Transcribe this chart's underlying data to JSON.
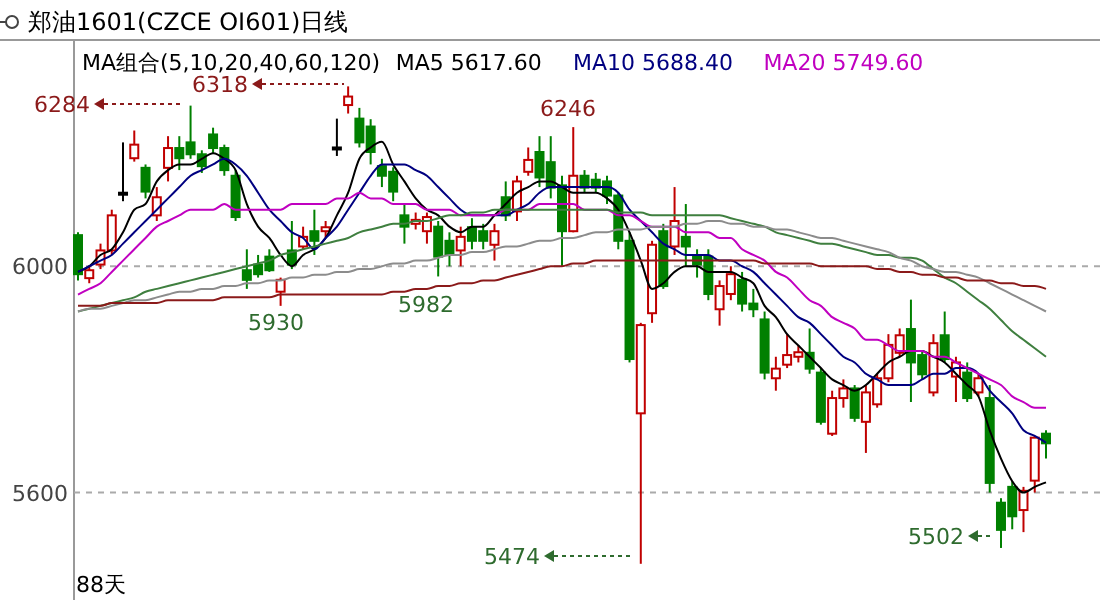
{
  "chart_data": {
    "type": "candlestick",
    "title": "郑油1601(CZCE OI601)日线",
    "subtitle": "MA组合(5,10,20,40,60,120)",
    "categories": [
      null,
      null,
      null,
      null,
      null,
      null,
      null,
      null,
      null,
      null,
      null,
      null,
      null,
      null,
      null,
      null,
      null,
      null,
      null,
      null,
      null,
      null,
      null,
      null,
      null,
      null,
      null,
      null,
      null,
      null,
      null,
      null,
      null,
      null,
      null,
      null,
      null,
      null,
      null,
      null,
      null,
      null,
      null,
      null,
      null,
      null,
      null,
      null,
      null,
      null,
      null,
      null,
      null,
      null,
      null,
      null,
      null,
      null,
      null,
      null,
      null,
      null,
      null,
      null,
      null,
      null,
      null,
      null,
      null,
      null,
      null,
      null,
      null,
      null,
      null,
      null,
      null,
      null,
      null,
      null,
      null,
      null,
      null,
      null,
      null,
      null,
      null
    ],
    "ohlc": [
      [
        6055,
        6060,
        5975,
        5986
      ],
      [
        5979,
        6000,
        5970,
        5993
      ],
      [
        6003,
        6040,
        5995,
        6028
      ],
      [
        6028,
        6100,
        6020,
        6090
      ],
      [
        6130,
        6219,
        6115,
        6130
      ],
      [
        6191,
        6240,
        6185,
        6215
      ],
      [
        6174,
        6180,
        6120,
        6132
      ],
      [
        6090,
        6140,
        6080,
        6122
      ],
      [
        6174,
        6230,
        6150,
        6209
      ],
      [
        6209,
        6230,
        6170,
        6191
      ],
      [
        6219,
        6284,
        6190,
        6198
      ],
      [
        6198,
        6205,
        6165,
        6177
      ],
      [
        6233,
        6245,
        6200,
        6209
      ],
      [
        6209,
        6215,
        6160,
        6170
      ],
      [
        6160,
        6170,
        6080,
        6087
      ],
      [
        5993,
        6030,
        5960,
        5976
      ],
      [
        6003,
        6020,
        5980,
        5986
      ],
      [
        6017,
        6030,
        5990,
        5993
      ],
      [
        5955,
        5980,
        5930,
        5976
      ],
      [
        6028,
        6080,
        5995,
        6003
      ],
      [
        6035,
        6070,
        6030,
        6052
      ],
      [
        6062,
        6100,
        6020,
        6045
      ],
      [
        6062,
        6080,
        6050,
        6069
      ],
      [
        6210,
        6261,
        6195,
        6210
      ],
      [
        6285,
        6318,
        6270,
        6300
      ],
      [
        6261,
        6280,
        6210,
        6219
      ],
      [
        6247,
        6260,
        6180,
        6202
      ],
      [
        6177,
        6190,
        6140,
        6160
      ],
      [
        6167,
        6175,
        6115,
        6132
      ],
      [
        6090,
        6110,
        6040,
        6070
      ],
      [
        6075,
        6095,
        6065,
        6082
      ],
      [
        6062,
        6095,
        6040,
        6087
      ],
      [
        6070,
        6080,
        5982,
        6017
      ],
      [
        6045,
        6060,
        6000,
        6021
      ],
      [
        6028,
        6070,
        6000,
        6052
      ],
      [
        6069,
        6085,
        6030,
        6045
      ],
      [
        6062,
        6075,
        6030,
        6045
      ],
      [
        6038,
        6075,
        6010,
        6062
      ],
      [
        6122,
        6150,
        6080,
        6090
      ],
      [
        6097,
        6160,
        6080,
        6150
      ],
      [
        6167,
        6210,
        6160,
        6188
      ],
      [
        6202,
        6230,
        6140,
        6157
      ],
      [
        6184,
        6230,
        6120,
        6139
      ],
      [
        6143,
        6160,
        6000,
        6062
      ],
      [
        6062,
        6246,
        6060,
        6160
      ],
      [
        6160,
        6170,
        6130,
        6139
      ],
      [
        6153,
        6165,
        6130,
        6139
      ],
      [
        6150,
        6160,
        6110,
        6125
      ],
      [
        6125,
        6130,
        6030,
        6045
      ],
      [
        6045,
        6060,
        5830,
        5836
      ],
      [
        5740,
        5900,
        5474,
        5896
      ],
      [
        5917,
        6045,
        5900,
        6038
      ],
      [
        6062,
        6075,
        5960,
        5965
      ],
      [
        6035,
        6140,
        6020,
        6080
      ],
      [
        6052,
        6110,
        6000,
        6035
      ],
      [
        6017,
        6030,
        5980,
        6003
      ],
      [
        6017,
        6030,
        5940,
        5951
      ],
      [
        5924,
        5975,
        5895,
        5965
      ],
      [
        5951,
        6000,
        5940,
        5986
      ],
      [
        5976,
        5990,
        5920,
        5934
      ],
      [
        5934,
        5960,
        5910,
        5924
      ],
      [
        5906,
        5920,
        5800,
        5812
      ],
      [
        5802,
        5840,
        5780,
        5819
      ],
      [
        5826,
        5880,
        5820,
        5843
      ],
      [
        5840,
        5860,
        5830,
        5848
      ],
      [
        5847,
        5890,
        5810,
        5819
      ],
      [
        5812,
        5820,
        5720,
        5725
      ],
      [
        5704,
        5780,
        5700,
        5767
      ],
      [
        5767,
        5800,
        5750,
        5784
      ],
      [
        5784,
        5790,
        5725,
        5732
      ],
      [
        5725,
        5790,
        5670,
        5777
      ],
      [
        5756,
        5810,
        5750,
        5802
      ],
      [
        5802,
        5880,
        5795,
        5861
      ],
      [
        5847,
        5890,
        5840,
        5878
      ],
      [
        5889,
        5941,
        5760,
        5830
      ],
      [
        5843,
        5850,
        5800,
        5809
      ],
      [
        5777,
        5880,
        5770,
        5864
      ],
      [
        5878,
        5920,
        5830,
        5836
      ],
      [
        5805,
        5840,
        5760,
        5830
      ],
      [
        5812,
        5830,
        5760,
        5767
      ],
      [
        5777,
        5810,
        5770,
        5802
      ],
      [
        5767,
        5790,
        5600,
        5617
      ],
      [
        5582,
        5590,
        5502,
        5534
      ],
      [
        5610,
        5620,
        5535,
        5558
      ],
      [
        5569,
        5610,
        5530,
        5603
      ],
      [
        5621,
        5700,
        5600,
        5697
      ],
      [
        5704,
        5710,
        5660,
        5687
      ]
    ],
    "series": [
      {
        "type": "line",
        "name": "MA5 5617.60",
        "color": "#000000",
        "values": [
          5990,
          6000,
          6020,
          6030,
          6060,
          6100,
          6110,
          6150,
          6170,
          6180,
          6180,
          6190,
          6200,
          6190,
          6170,
          6110,
          6070,
          6050,
          6020,
          6000,
          6020,
          6030,
          6050,
          6090,
          6130,
          6190,
          6210,
          6220,
          6180,
          6150,
          6120,
          6100,
          6090,
          6070,
          6060,
          6070,
          6070,
          6090,
          6110,
          6130,
          6140,
          6150,
          6150,
          6140,
          6130,
          6130,
          6130,
          6120,
          6100,
          6060,
          6010,
          5960,
          5970,
          5990,
          6000,
          6000,
          5990,
          5990,
          5990,
          5980,
          5970,
          5930,
          5910,
          5880,
          5860,
          5840,
          5820,
          5800,
          5790,
          5780,
          5790,
          5810,
          5830,
          5840,
          5850,
          5850,
          5840,
          5830,
          5810,
          5790,
          5770,
          5710,
          5660,
          5620,
          5600,
          5610,
          5618
        ]
      },
      {
        "type": "line",
        "name": "MA10 5688.40",
        "color": "#000080",
        "values": [
          5990,
          6000,
          6010,
          6020,
          6040,
          6060,
          6080,
          6100,
          6120,
          6140,
          6160,
          6170,
          6180,
          6190,
          6180,
          6160,
          6130,
          6100,
          6080,
          6060,
          6050,
          6030,
          6050,
          6070,
          6100,
          6130,
          6160,
          6180,
          6180,
          6180,
          6170,
          6160,
          6140,
          6120,
          6100,
          6090,
          6090,
          6090,
          6090,
          6100,
          6110,
          6130,
          6140,
          6140,
          6140,
          6140,
          6140,
          6140,
          6130,
          6100,
          6080,
          6060,
          6040,
          6030,
          6020,
          6020,
          6020,
          6010,
          6010,
          6000,
          5990,
          5970,
          5950,
          5930,
          5910,
          5900,
          5880,
          5860,
          5840,
          5830,
          5810,
          5800,
          5790,
          5790,
          5790,
          5800,
          5810,
          5810,
          5820,
          5820,
          5810,
          5780,
          5760,
          5740,
          5710,
          5700,
          5688
        ]
      },
      {
        "type": "line",
        "name": "MA20 5749.60",
        "color": "#c000c0",
        "values": [
          5950,
          5960,
          5970,
          5990,
          6010,
          6030,
          6050,
          6070,
          6080,
          6090,
          6100,
          6100,
          6100,
          6110,
          6100,
          6100,
          6100,
          6100,
          6100,
          6110,
          6110,
          6110,
          6110,
          6120,
          6120,
          6130,
          6120,
          6120,
          6110,
          6110,
          6110,
          6100,
          6100,
          6100,
          6090,
          6090,
          6090,
          6090,
          6100,
          6100,
          6100,
          6110,
          6110,
          6110,
          6110,
          6100,
          6100,
          6100,
          6090,
          6090,
          6080,
          6070,
          6070,
          6070,
          6060,
          6060,
          6060,
          6050,
          6050,
          6030,
          6020,
          6010,
          5990,
          5980,
          5960,
          5940,
          5930,
          5910,
          5900,
          5890,
          5870,
          5870,
          5860,
          5850,
          5850,
          5850,
          5840,
          5840,
          5830,
          5820,
          5810,
          5800,
          5790,
          5770,
          5760,
          5750,
          5750
        ]
      },
      {
        "type": "line",
        "color": "#3f7f3f",
        "values": [
          5920,
          5925,
          5930,
          5935,
          5940,
          5945,
          5955,
          5960,
          5965,
          5970,
          5975,
          5980,
          5985,
          5990,
          5995,
          6000,
          6005,
          6010,
          6020,
          6025,
          6030,
          6035,
          6040,
          6045,
          6050,
          6060,
          6065,
          6070,
          6075,
          6075,
          6080,
          6080,
          6085,
          6090,
          6090,
          6095,
          6095,
          6100,
          6100,
          6100,
          6100,
          6100,
          6100,
          6100,
          6100,
          6100,
          6100,
          6100,
          6095,
          6095,
          6095,
          6090,
          6090,
          6090,
          6090,
          6090,
          6090,
          6090,
          6085,
          6080,
          6075,
          6070,
          6060,
          6055,
          6050,
          6045,
          6040,
          6040,
          6035,
          6030,
          6025,
          6020,
          6020,
          6015,
          6015,
          6010,
          5995,
          5980,
          5970,
          5955,
          5940,
          5925,
          5905,
          5885,
          5870,
          5855,
          5840
        ]
      },
      {
        "type": "line",
        "color": "#8c8c8c",
        "values": [
          5920,
          5925,
          5925,
          5930,
          5935,
          5940,
          5940,
          5945,
          5950,
          5955,
          5955,
          5960,
          5960,
          5965,
          5965,
          5970,
          5970,
          5975,
          5975,
          5980,
          5980,
          5985,
          5985,
          5990,
          5990,
          5995,
          5995,
          6000,
          6005,
          6005,
          6010,
          6010,
          6015,
          6020,
          6020,
          6025,
          6025,
          6030,
          6035,
          6035,
          6040,
          6045,
          6045,
          6050,
          6050,
          6055,
          6060,
          6060,
          6065,
          6065,
          6065,
          6070,
          6070,
          6070,
          6075,
          6075,
          6080,
          6080,
          6075,
          6075,
          6070,
          6070,
          6065,
          6065,
          6060,
          6055,
          6050,
          6050,
          6045,
          6040,
          6035,
          6030,
          6025,
          6015,
          6010,
          6000,
          5995,
          5990,
          5990,
          5985,
          5980,
          5970,
          5960,
          5950,
          5940,
          5930,
          5920
        ]
      },
      {
        "type": "line",
        "color": "#8b1a1a",
        "values": [
          5930,
          5930,
          5930,
          5935,
          5935,
          5935,
          5935,
          5935,
          5940,
          5940,
          5940,
          5940,
          5940,
          5945,
          5945,
          5945,
          5945,
          5945,
          5950,
          5950,
          5950,
          5950,
          5950,
          5950,
          5950,
          5950,
          5950,
          5950,
          5955,
          5955,
          5960,
          5960,
          5965,
          5965,
          5970,
          5970,
          5975,
          5975,
          5980,
          5985,
          5990,
          5995,
          6000,
          6000,
          6005,
          6005,
          6010,
          6010,
          6010,
          6010,
          6010,
          6010,
          6010,
          6010,
          6010,
          6010,
          6010,
          6010,
          6010,
          6010,
          6010,
          6005,
          6005,
          6005,
          6005,
          6005,
          6000,
          6000,
          6000,
          6000,
          6000,
          5995,
          5995,
          5990,
          5990,
          5985,
          5985,
          5980,
          5980,
          5975,
          5975,
          5975,
          5970,
          5970,
          5965,
          5965,
          5960
        ]
      }
    ],
    "ylim": [
      5410,
      6400
    ],
    "yticks": [
      6000,
      5600
    ],
    "grid": "y",
    "tick_labels": "y",
    "legend": "top",
    "annotations": [
      "6284",
      "6318",
      "6246",
      "5930",
      "5982",
      "5474",
      "5502",
      "88天"
    ]
  }
}
